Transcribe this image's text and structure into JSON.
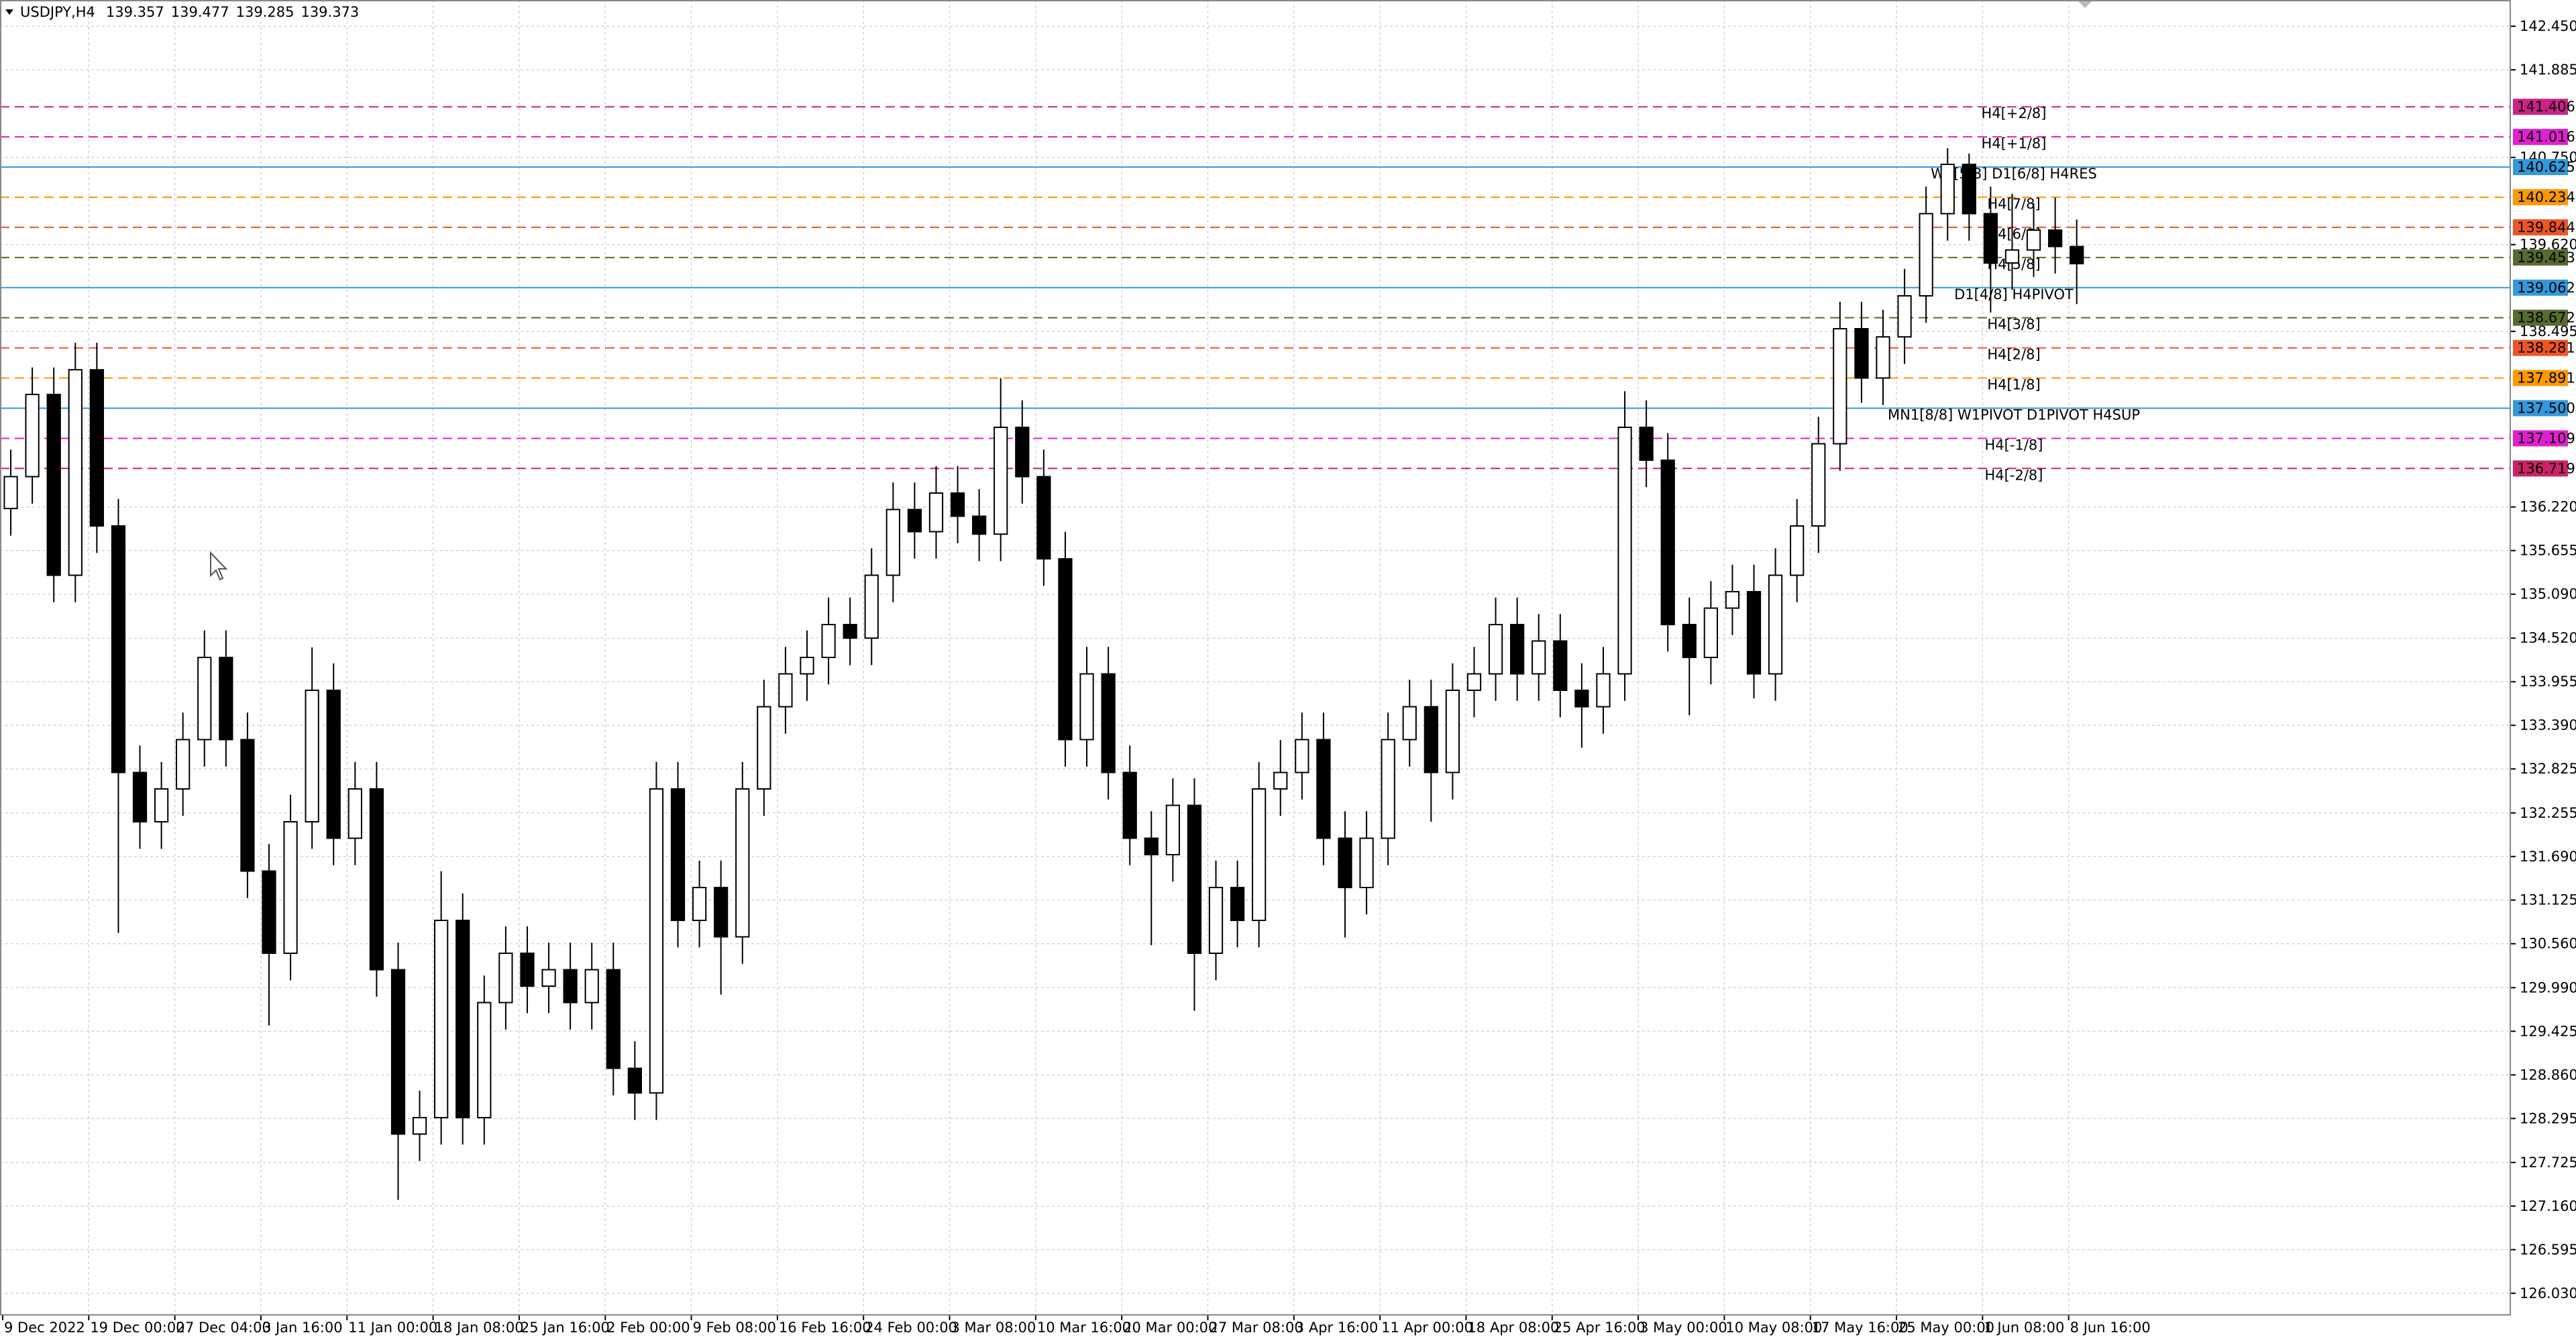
{
  "chart_data": {
    "type": "candlestick",
    "title": "USDJPY,H4",
    "header_values": [
      139.357,
      139.477,
      139.285,
      139.373
    ],
    "categories": [
      "9 Dec 2022",
      null,
      null,
      null,
      "19 Dec 00:00",
      null,
      null,
      null,
      "27 Dec 04:00",
      null,
      null,
      null,
      "3 Jan 16:00",
      null,
      null,
      null,
      "11 Jan 00:00",
      null,
      null,
      null,
      "18 Jan 08:00",
      null,
      null,
      null,
      "25 Jan 16:00",
      null,
      null,
      null,
      "2 Feb 00:00",
      null,
      null,
      null,
      "9 Feb 08:00",
      null,
      null,
      null,
      "16 Feb 16:00",
      null,
      null,
      null,
      "24 Feb 00:00",
      null,
      null,
      null,
      "3 Mar 08:00",
      null,
      null,
      null,
      "10 Mar 16:00",
      null,
      null,
      null,
      "20 Mar 00:00",
      null,
      null,
      null,
      "27 Mar 08:00",
      null,
      null,
      null,
      "3 Apr 16:00",
      null,
      null,
      null,
      "11 Apr 00:00",
      null,
      null,
      null,
      "18 Apr 08:00",
      null,
      null,
      null,
      "25 Apr 16:00",
      null,
      null,
      null,
      "3 May 00:00",
      null,
      null,
      null,
      "10 May 08:00",
      null,
      null,
      null,
      "17 May 16:00",
      null,
      null,
      null,
      "25 May 00:00",
      null,
      null,
      null,
      "1 Jun 08:00",
      null,
      null,
      null,
      "8 Jun 16:00"
    ],
    "open": [
      136.2,
      136.613,
      137.678,
      135.335,
      137.998,
      135.974,
      132.779,
      132.14,
      132.566,
      133.205,
      134.27,
      133.205,
      131.501,
      130.436,
      132.14,
      133.844,
      131.927,
      132.566,
      130.223,
      128.093,
      128.306,
      130.862,
      128.306,
      129.797,
      130.436,
      130.01,
      130.223,
      129.797,
      130.223,
      128.945,
      128.626,
      132.566,
      130.862,
      131.288,
      130.649,
      132.566,
      133.631,
      134.057,
      134.27,
      134.696,
      134.52,
      135.335,
      136.187,
      135.9,
      136.4,
      136.1,
      135.868,
      137.252,
      136.613,
      135.548,
      133.205,
      134.057,
      132.779,
      131.927,
      131.714,
      132.353,
      130.436,
      131.288,
      130.862,
      132.566,
      132.779,
      133.205,
      131.927,
      131.288,
      131.927,
      133.205,
      133.631,
      132.779,
      133.844,
      134.057,
      134.696,
      134.057,
      134.483,
      133.844,
      133.631,
      134.057,
      137.252,
      136.826,
      134.696,
      134.27,
      134.909,
      135.122,
      134.057,
      135.335,
      135.974,
      137.039,
      138.53,
      137.891,
      138.424,
      138.956,
      140.021,
      140.66,
      140.021,
      139.382,
      139.55,
      139.808,
      139.595
    ],
    "high": [
      136.963,
      138.028,
      138.028,
      138.348,
      138.348,
      136.324,
      133.129,
      132.916,
      133.555,
      134.62,
      134.62,
      133.555,
      131.851,
      132.49,
      134.4,
      134.194,
      132.916,
      132.916,
      130.573,
      128.656,
      131.5,
      131.212,
      130.147,
      130.786,
      130.786,
      130.573,
      130.573,
      130.573,
      130.573,
      129.295,
      132.916,
      132.916,
      131.638,
      131.638,
      132.916,
      133.981,
      134.407,
      134.62,
      135.046,
      135.046,
      135.685,
      136.537,
      136.537,
      136.75,
      136.75,
      136.45,
      137.89,
      137.602,
      136.963,
      135.898,
      134.407,
      134.407,
      133.129,
      132.277,
      132.703,
      132.703,
      131.638,
      131.638,
      132.916,
      133.2,
      133.555,
      133.555,
      132.277,
      132.277,
      133.555,
      133.981,
      133.981,
      134.194,
      134.407,
      135.046,
      135.046,
      134.833,
      134.833,
      134.194,
      134.407,
      137.72,
      137.602,
      137.176,
      135.046,
      135.259,
      135.472,
      135.472,
      135.685,
      136.324,
      137.389,
      138.88,
      138.88,
      138.774,
      139.306,
      140.371,
      140.87,
      140.8,
      140.371,
      140.28,
      140.158,
      140.23,
      139.945
    ],
    "low": [
      135.85,
      136.263,
      134.985,
      134.985,
      135.624,
      130.7,
      131.79,
      131.79,
      132.216,
      132.855,
      132.855,
      131.151,
      129.5,
      130.086,
      131.79,
      131.577,
      131.577,
      129.873,
      127.24,
      127.743,
      127.956,
      127.956,
      127.956,
      129.447,
      129.66,
      129.66,
      129.447,
      129.447,
      128.595,
      128.276,
      128.276,
      130.512,
      130.512,
      129.9,
      130.299,
      132.216,
      133.281,
      133.707,
      133.92,
      134.17,
      134.17,
      134.985,
      135.55,
      135.55,
      135.75,
      135.518,
      135.518,
      136.263,
      135.198,
      132.855,
      132.855,
      132.429,
      131.577,
      130.54,
      131.364,
      129.69,
      130.086,
      130.512,
      130.512,
      132.216,
      132.429,
      131.577,
      130.64,
      130.938,
      131.577,
      132.855,
      132.14,
      132.429,
      133.494,
      133.707,
      133.707,
      133.707,
      133.494,
      133.1,
      133.281,
      133.707,
      136.476,
      134.346,
      133.52,
      133.92,
      134.559,
      133.74,
      133.707,
      134.985,
      135.624,
      136.689,
      137.57,
      137.541,
      138.074,
      138.606,
      139.671,
      139.671,
      138.74,
      139.032,
      139.2,
      139.245,
      138.85
    ],
    "close": [
      136.613,
      137.678,
      135.335,
      137.998,
      135.974,
      132.779,
      132.14,
      132.566,
      133.205,
      134.27,
      133.205,
      131.501,
      130.436,
      132.14,
      133.844,
      131.927,
      132.566,
      130.223,
      128.093,
      128.306,
      130.862,
      128.306,
      129.797,
      130.436,
      130.01,
      130.223,
      129.797,
      130.223,
      128.945,
      128.626,
      132.566,
      130.862,
      131.288,
      130.649,
      132.566,
      133.631,
      134.057,
      134.27,
      134.696,
      134.52,
      135.335,
      136.187,
      135.9,
      136.4,
      136.1,
      135.868,
      137.252,
      136.613,
      135.548,
      133.205,
      134.057,
      132.779,
      131.927,
      131.714,
      132.353,
      130.436,
      131.288,
      130.862,
      132.566,
      132.779,
      133.205,
      131.927,
      131.288,
      131.927,
      133.205,
      133.631,
      132.779,
      133.844,
      134.057,
      134.696,
      134.057,
      134.483,
      133.844,
      133.631,
      134.057,
      137.252,
      136.826,
      134.696,
      134.27,
      134.909,
      135.122,
      134.057,
      135.335,
      135.974,
      137.039,
      138.53,
      137.891,
      138.424,
      138.956,
      140.021,
      140.66,
      140.021,
      139.382,
      139.55,
      139.808,
      139.595,
      139.373
    ],
    "up_color": "#ffffff",
    "down_color": "#000000",
    "wick_color": "#000000",
    "ylim": [
      125.75,
      142.79
    ],
    "yticks": [
      {
        "value": 142.45,
        "label": "142.450"
      },
      141.885,
      {
        "value": 140.75,
        "label": "140.750"
      },
      {
        "value": 139.62,
        "label": "139.620"
      },
      138.495,
      {
        "value": 136.22,
        "label": "136.220"
      },
      135.655,
      {
        "value": 135.09,
        "label": "135.090"
      },
      {
        "value": 134.52,
        "label": "134.520"
      },
      133.955,
      {
        "value": 133.39,
        "label": "133.390"
      },
      132.825,
      132.255,
      {
        "value": 131.69,
        "label": "131.690"
      },
      131.125,
      {
        "value": 130.56,
        "label": "130.560"
      },
      {
        "value": 129.99,
        "label": "129.990"
      },
      129.425,
      {
        "value": 128.86,
        "label": "128.860"
      },
      128.295,
      127.725,
      {
        "value": 127.16,
        "label": "127.160"
      },
      126.595,
      {
        "value": 126.03,
        "label": "126.030"
      }
    ],
    "grid": true,
    "levels": [
      {
        "name": "H4[+2/8]",
        "price": 141.406,
        "color": "#cc2288",
        "dashed": true
      },
      {
        "name": "H4[+1/8]",
        "price": 141.016,
        "color": "#e020d0",
        "dashed": true
      },
      {
        "name": "W1[5/8] D1[6/8] H4RES",
        "price": 140.625,
        "color": "#3399dd",
        "dashed": false
      },
      {
        "name": "H4[7/8]",
        "price": 140.234,
        "color": "#ff9900",
        "dashed": true
      },
      {
        "name": "H4[6/8]",
        "price": 139.844,
        "color": "#ee5522",
        "dashed": true
      },
      {
        "name": "H4[5/8]",
        "price": 139.453,
        "color": "#556b2f",
        "dashed": true
      },
      {
        "name": "D1[4/8] H4PIVOT",
        "price": 139.062,
        "color": "#3399dd",
        "dashed": false
      },
      {
        "name": "H4[3/8]",
        "price": 138.672,
        "color": "#556b2f",
        "dashed": true
      },
      {
        "name": "H4[2/8]",
        "price": 138.281,
        "color": "#ee5522",
        "dashed": true
      },
      {
        "name": "H4[1/8]",
        "price": 137.891,
        "color": "#ff9900",
        "dashed": true
      },
      {
        "name": "MN1[8/8] W1PIVOT D1PIVOT H4SUP",
        "price": 137.5,
        "price_label": "137.500",
        "color": "#3399dd",
        "dashed": false
      },
      {
        "name": "H4[-1/8]",
        "price": 137.109,
        "color": "#e020d0",
        "dashed": true
      },
      {
        "name": "H4[-2/8]",
        "price": 136.719,
        "color": "#cc2266",
        "dashed": true
      }
    ]
  }
}
